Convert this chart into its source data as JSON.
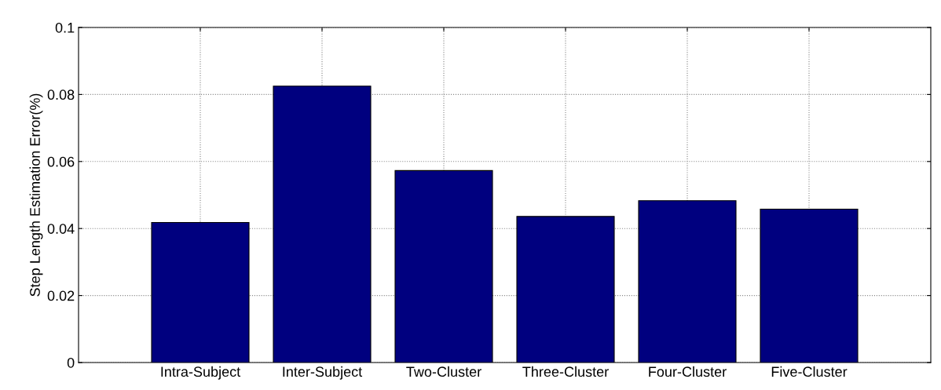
{
  "chart_data": {
    "type": "bar",
    "ylabel": "Step Length Estimation Error(%)",
    "categories": [
      "Intra-Subject",
      "Inter-Subject",
      "Two-Cluster",
      "Three-Cluster",
      "Four-Cluster",
      "Five-Cluster"
    ],
    "values": [
      0.0418,
      0.0825,
      0.0573,
      0.0436,
      0.0483,
      0.0458
    ],
    "color": "#00007f",
    "ylim": [
      0,
      0.1
    ],
    "yticks": [
      0,
      0.02,
      0.04,
      0.06,
      0.08,
      0.1
    ],
    "grid": true
  }
}
